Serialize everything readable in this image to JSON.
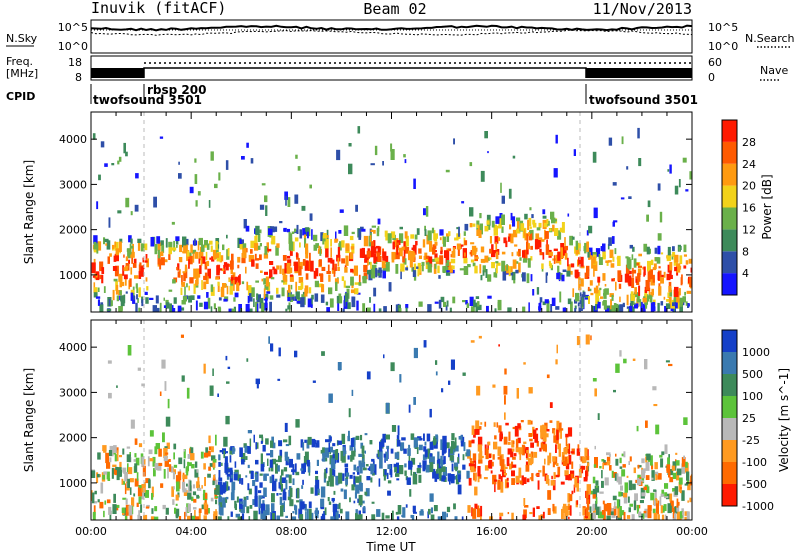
{
  "header": {
    "station": "Inuvik (fitACF)",
    "beam": "Beam 02",
    "date": "11/Nov/2013"
  },
  "strips": {
    "nsky_label": "N.Sky",
    "nsky_top": "10^5",
    "nsky_bottom": "10^0",
    "nsearch_label": "N.Search",
    "nsearch_top": "10^5",
    "nsearch_bottom": "10^0",
    "freq_label": "Freq.",
    "freq_unit": "[MHz]",
    "freq_top": "18",
    "freq_bottom": "8",
    "nave_label": "Nave",
    "nave_top": "60",
    "nave_bottom": "0",
    "cpid_label": "CPID",
    "cpid_segments": [
      {
        "name": "twofsound 3501",
        "start_hour": 0,
        "end_hour": 2
      },
      {
        "name": "rbsp 200",
        "start_hour": 2,
        "end_hour": 19.8
      },
      {
        "name": "twofsound 3501",
        "start_hour": 19.8,
        "end_hour": 24
      }
    ]
  },
  "chart_data": [
    {
      "type": "heatmap",
      "title": "",
      "xlabel": "Time UT",
      "ylabel": "Slant Range [km]",
      "xlim": [
        0,
        24
      ],
      "ylim": [
        180,
        4600
      ],
      "y_ticks": [
        1000,
        2000,
        3000,
        4000
      ],
      "colorbar": {
        "label": "Power [dB]",
        "ticks": [
          "4",
          "8",
          "12",
          "16",
          "20",
          "24",
          "28"
        ],
        "range": [
          0,
          30
        ],
        "colors": [
          "#1515ff",
          "#2e4fa8",
          "#3d8a5a",
          "#6ab04a",
          "#f2d21a",
          "#ff9a10",
          "#ff5a00",
          "#ff1a00"
        ]
      }
    },
    {
      "type": "heatmap",
      "title": "",
      "xlabel": "Time UT",
      "ylabel": "Slant Range [km]",
      "xlim": [
        0,
        24
      ],
      "ylim": [
        180,
        4600
      ],
      "y_ticks": [
        1000,
        2000,
        3000,
        4000
      ],
      "x_ticks": [
        "00:00",
        "04:00",
        "08:00",
        "12:00",
        "16:00",
        "20:00",
        "00:00"
      ],
      "colorbar": {
        "label": "Velocity [m s^-1]",
        "ticks": [
          "1000",
          "500",
          "100",
          "25",
          "-25",
          "-100",
          "-500",
          "-1000"
        ],
        "colors": [
          "#1540c8",
          "#3a7ab0",
          "#3d8a5a",
          "#5cc33a",
          "#b8b8b8",
          "#ff9a20",
          "#ff6a00",
          "#ff1a00"
        ]
      }
    }
  ]
}
